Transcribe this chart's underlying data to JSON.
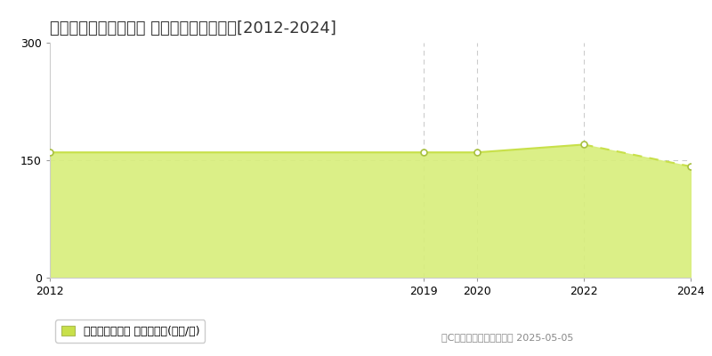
{
  "title": "名古屋市昭和区車田町 マンション価格推移[2012-2024]",
  "years": [
    2012,
    2019,
    2020,
    2022,
    2024
  ],
  "values": [
    160,
    160,
    160,
    170,
    142
  ],
  "line_color": "#c8e04a",
  "fill_color": "#d8ee7a",
  "fill_alpha": 0.9,
  "marker_color": "white",
  "marker_edge_color": "#a8c040",
  "ylim": [
    0,
    300
  ],
  "yticks": [
    0,
    150,
    300
  ],
  "legend_label": "マンション価格 平均坪単価(万円/坪)",
  "legend_color": "#c8e04a",
  "copyright_text": "（C）土地価格ドットコム 2025-05-05",
  "background_color": "#ffffff",
  "grid_color": "#cccccc",
  "vline_years": [
    2019,
    2020,
    2022
  ],
  "hline_y": 150,
  "title_fontsize": 13,
  "tick_fontsize": 9,
  "legend_fontsize": 9
}
